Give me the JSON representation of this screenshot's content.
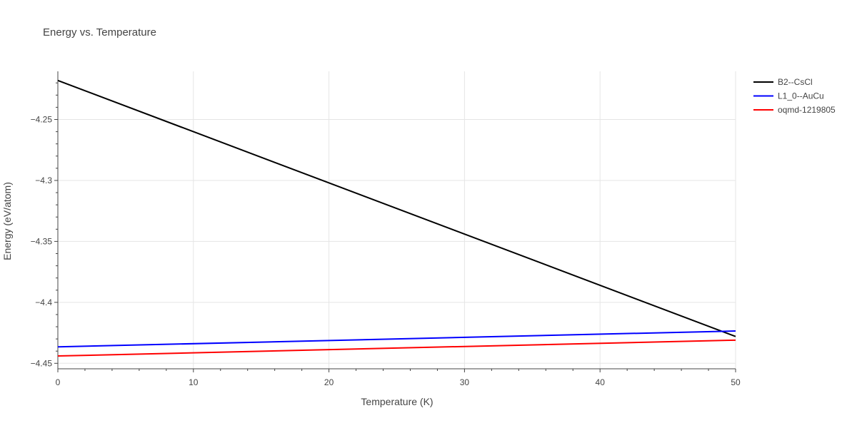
{
  "chart_data": {
    "type": "line",
    "title": "Energy vs. Temperature",
    "xlabel": "Temperature (K)",
    "ylabel": "Energy (eV/atom)",
    "xlim": [
      0,
      50
    ],
    "ylim": [
      -4.4545,
      -4.2105
    ],
    "x_ticks": [
      0,
      10,
      20,
      30,
      40,
      50
    ],
    "x_tick_labels": [
      "0",
      "10",
      "20",
      "30",
      "40",
      "50"
    ],
    "y_ticks": [
      -4.25,
      -4.3,
      -4.35,
      -4.4,
      -4.45
    ],
    "y_tick_labels": [
      "−4.25",
      "−4.3",
      "−4.35",
      "−4.4",
      "−4.45"
    ],
    "grid": true,
    "legend_position": "top-right",
    "series": [
      {
        "name": "B2--CsCl",
        "color": "#000000",
        "x": [
          0,
          50
        ],
        "y": [
          -4.218,
          -4.428
        ]
      },
      {
        "name": "L1_0--AuCu",
        "color": "#0000ff",
        "x": [
          0,
          50
        ],
        "y": [
          -4.4365,
          -4.4235
        ]
      },
      {
        "name": "oqmd-1219805",
        "color": "#ff0000",
        "x": [
          0,
          50
        ],
        "y": [
          -4.444,
          -4.431
        ]
      }
    ]
  }
}
